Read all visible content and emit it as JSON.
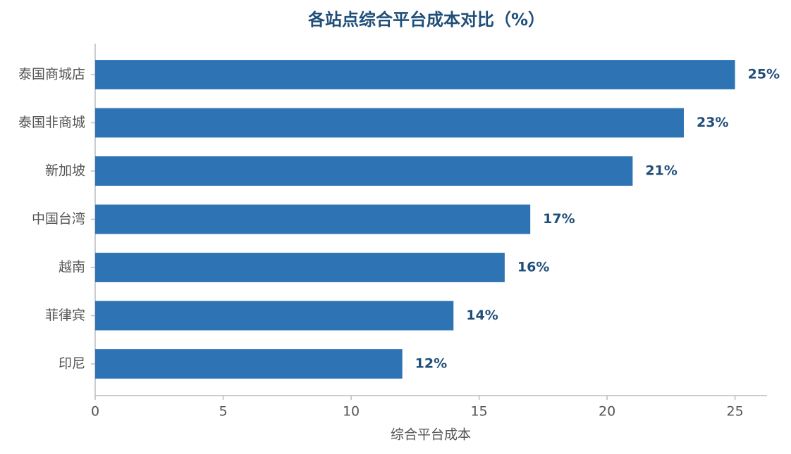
{
  "chart_data": {
    "type": "barh",
    "title": "各站点综合平台成本对比（%）",
    "x_label": "综合平台成本",
    "categories": [
      "泰国商城店",
      "泰国非商城",
      "新加坡",
      "中国台湾",
      "越南",
      "菲律宾",
      "印尼"
    ],
    "values": [
      25,
      23,
      21,
      17,
      16,
      14,
      12
    ],
    "value_labels": [
      "25%",
      "23%",
      "21%",
      "17%",
      "16%",
      "14%",
      "12%"
    ],
    "color": "#2e74b5",
    "xlim": [
      0,
      26.25
    ],
    "xticks": [
      0,
      5,
      10,
      15,
      20,
      25
    ],
    "grid": false
  }
}
